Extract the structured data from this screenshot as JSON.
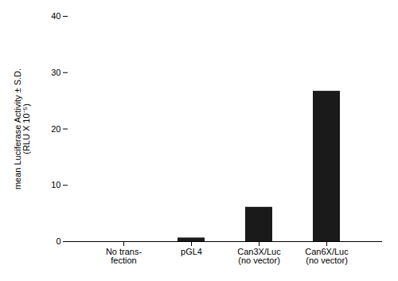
{
  "chart_data": {
    "type": "bar",
    "categories": [
      "No trans-\nfection",
      "pGL4",
      "Can3X/Luc\n(no vector)",
      "Can6X/Luc\n(no vector)"
    ],
    "values": [
      0.0,
      0.65,
      6.1,
      26.7
    ],
    "color": "#1a1a1a",
    "ylabel": "mean Luciferase Activity ± S.D.\n(RLU X 10⁻⁵)",
    "ylim": [
      0,
      40
    ],
    "yticks": [
      0,
      10,
      20,
      30,
      40
    ],
    "grid": false
  }
}
